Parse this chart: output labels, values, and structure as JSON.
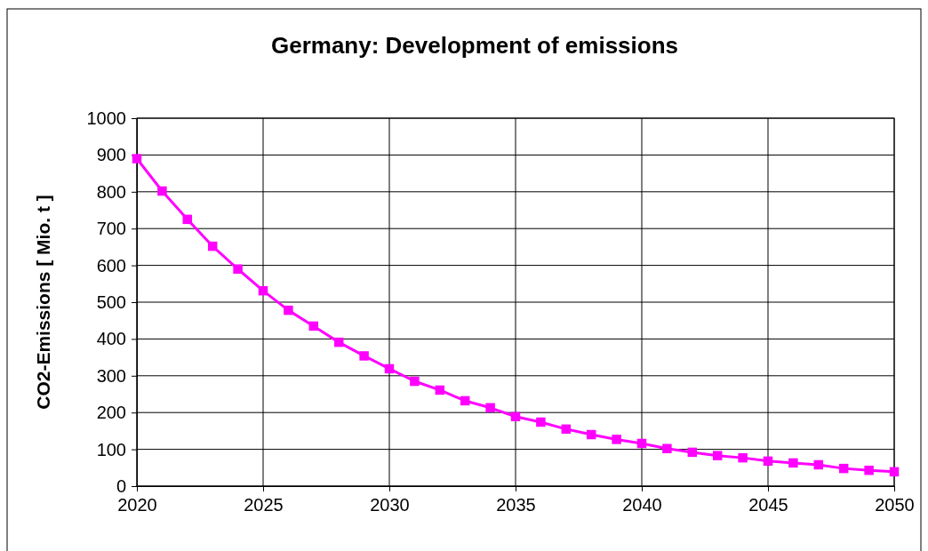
{
  "chart_data": {
    "type": "line",
    "title": "Germany: Development of emissions",
    "ylabel": "CO2-Emissions [ Mio. t ]",
    "x": [
      2020,
      2021,
      2022,
      2023,
      2024,
      2025,
      2026,
      2027,
      2028,
      2029,
      2030,
      2031,
      2032,
      2033,
      2034,
      2035,
      2036,
      2037,
      2038,
      2039,
      2040,
      2041,
      2042,
      2043,
      2044,
      2045,
      2046,
      2047,
      2048,
      2049,
      2050
    ],
    "series": [
      {
        "color": "#ff00ff",
        "values": [
          890,
          802,
          725,
          652,
          590,
          531,
          478,
          435,
          391,
          354,
          319,
          285,
          261,
          232,
          213,
          189,
          174,
          155,
          140,
          127,
          116,
          102,
          92,
          83,
          77,
          68,
          63,
          58,
          48,
          43,
          39
        ]
      }
    ],
    "xlim": [
      2020,
      2050
    ],
    "xticks": [
      2020,
      2025,
      2030,
      2035,
      2040,
      2045,
      2050
    ],
    "ylim": [
      0,
      1000
    ],
    "yticks": [
      0,
      100,
      200,
      300,
      400,
      500,
      600,
      700,
      800,
      900,
      1000
    ],
    "grid": true,
    "marker": "square",
    "line_style": "solid"
  }
}
